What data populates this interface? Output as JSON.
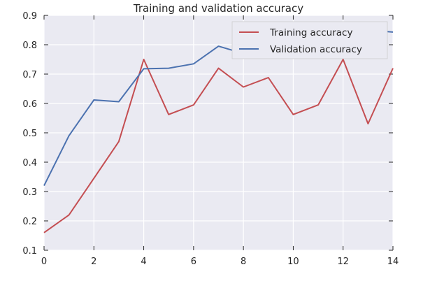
{
  "chart_data": {
    "type": "line",
    "title": "Training and validation accuracy",
    "xlabel": "",
    "ylabel": "",
    "x": [
      0,
      1,
      2,
      3,
      4,
      5,
      6,
      7,
      8,
      9,
      10,
      11,
      12,
      13,
      14
    ],
    "xlim": [
      0,
      14
    ],
    "ylim": [
      0.1,
      0.9
    ],
    "xticks": [
      0,
      2,
      4,
      6,
      8,
      10,
      12,
      14
    ],
    "yticks": [
      0.1,
      0.2,
      0.3,
      0.4,
      0.5,
      0.6,
      0.7,
      0.8,
      0.9
    ],
    "grid": true,
    "legend_position": "upper right",
    "series": [
      {
        "name": "Training accuracy",
        "color": "#c44e52",
        "values": [
          0.16,
          0.22,
          0.345,
          0.47,
          0.75,
          0.5625,
          0.595,
          0.72,
          0.656,
          0.688,
          0.5625,
          0.595,
          0.75,
          0.531,
          0.72
        ]
      },
      {
        "name": "Validation accuracy",
        "color": "#4c72b0",
        "values": [
          0.32,
          0.49,
          0.612,
          0.606,
          0.718,
          0.72,
          0.735,
          0.795,
          0.77,
          0.815,
          0.825,
          0.835,
          0.845,
          0.85,
          0.843
        ]
      }
    ]
  }
}
